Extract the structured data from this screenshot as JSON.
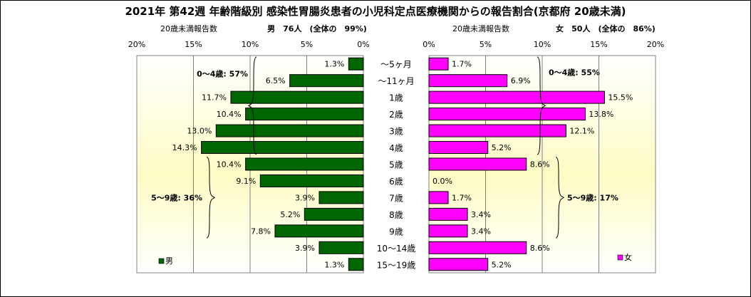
{
  "chart_data": {
    "type": "bar",
    "title": "2021年 第42週 年齢階級別 感染性胃腸炎患者の小児科定点医療機関からの報告割合(京都府 20歳未満)",
    "categories": [
      "～5ヶ月",
      "～11ヶ月",
      "1歳",
      "2歳",
      "3歳",
      "4歳",
      "5歳",
      "6歳",
      "7歳",
      "8歳",
      "9歳",
      "10～14歳",
      "15～19歳"
    ],
    "xlim": [
      0,
      20
    ],
    "ticks": [
      "0%",
      "5%",
      "10%",
      "15%",
      "20%"
    ],
    "series": [
      {
        "name": "男",
        "color": "#006600",
        "header_label": "20歳未満報告数",
        "header_title": "男　76人　(全体の　99%)",
        "values": [
          1.3,
          6.5,
          11.7,
          10.4,
          13.0,
          14.3,
          10.4,
          9.1,
          3.9,
          5.2,
          7.8,
          3.9,
          1.3
        ],
        "value_labels": [
          "1.3%",
          "6.5%",
          "11.7%",
          "10.4%",
          "13.0%",
          "14.3%",
          "10.4%",
          "9.1%",
          "3.9%",
          "5.2%",
          "7.8%",
          "3.9%",
          "1.3%"
        ],
        "groups": [
          {
            "label": "0～4歳: 57%",
            "from": 0,
            "to": 5
          },
          {
            "label": "5～9歳: 36%",
            "from": 6,
            "to": 10
          }
        ]
      },
      {
        "name": "女",
        "color": "#ff00ff",
        "header_label": "20歳未満報告数",
        "header_title": "女　50人　(全体の　86%)",
        "values": [
          1.7,
          6.9,
          15.5,
          13.8,
          12.1,
          5.2,
          8.6,
          0.0,
          1.7,
          3.4,
          3.4,
          8.6,
          5.2
        ],
        "value_labels": [
          "1.7%",
          "6.9%",
          "15.5%",
          "13.8%",
          "12.1%",
          "5.2%",
          "8.6%",
          "0.0%",
          "1.7%",
          "3.4%",
          "3.4%",
          "8.6%",
          "5.2%"
        ],
        "groups": [
          {
            "label": "0～4歳: 55%",
            "from": 0,
            "to": 5
          },
          {
            "label": "5～9歳: 17%",
            "from": 6,
            "to": 10
          }
        ]
      }
    ],
    "grid": true,
    "legend": "bottom-corners"
  }
}
